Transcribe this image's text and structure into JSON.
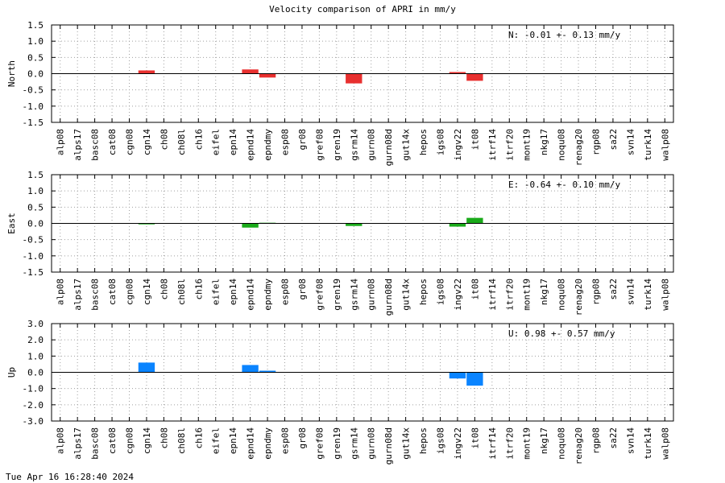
{
  "chart_data": {
    "title": "Velocity comparison of APRI in mm/y",
    "timestamp": "Tue Apr 16 16:28:40 2024",
    "categories": [
      "alp08",
      "alps17",
      "basc08",
      "cat08",
      "cgn08",
      "cgn14",
      "ch08",
      "ch08l",
      "ch16",
      "eifel",
      "epn14",
      "epnd14",
      "epndmy",
      "esp08",
      "gr08",
      "gref08",
      "gren19",
      "gsrm14",
      "gurn08",
      "gurn08d",
      "gut14x",
      "hepos",
      "igs08",
      "ingv22",
      "it08",
      "itrf14",
      "itrf20",
      "mont19",
      "nkg17",
      "noqu08",
      "renag20",
      "rgp08",
      "sa22",
      "svn14",
      "turk14",
      "walp08"
    ],
    "panels": [
      {
        "type": "bar",
        "ylabel": "North",
        "color": "#e8302f",
        "ylim": [
          -1.5,
          1.5
        ],
        "yticks": [
          1.5,
          1.0,
          0.5,
          0.0,
          -0.5,
          -1.0,
          -1.5
        ],
        "yticklabels": [
          "1.5",
          "1.0",
          "0.5",
          "0.0",
          "-0.5",
          "-1.0",
          "-1.5"
        ],
        "stats": "N:  -0.01 +-  0.13 mm/y",
        "values": [
          0,
          0,
          0,
          0,
          0,
          0.1,
          0,
          0,
          0,
          0,
          0,
          0.13,
          -0.12,
          0,
          0,
          0,
          0,
          -0.3,
          0,
          0,
          0,
          0,
          0,
          0.05,
          -0.22,
          0,
          0,
          0,
          0,
          0,
          0,
          0,
          0,
          0,
          0,
          0
        ]
      },
      {
        "type": "bar",
        "ylabel": "East",
        "color": "#1aaa1a",
        "ylim": [
          -1.5,
          1.5
        ],
        "yticks": [
          1.5,
          1.0,
          0.5,
          0.0,
          -0.5,
          -1.0,
          -1.5
        ],
        "yticklabels": [
          "1.5",
          "1.0",
          "0.5",
          "0.0",
          "-0.5",
          "-1.0",
          "-1.5"
        ],
        "stats": "E:  -0.64 +-  0.10 mm/y",
        "values": [
          0,
          0,
          0,
          0,
          0,
          -0.03,
          0,
          0,
          0,
          0,
          0,
          -0.13,
          0.02,
          0,
          0,
          0,
          0,
          -0.08,
          0,
          0,
          0,
          0,
          0,
          -0.1,
          0.17,
          0,
          0,
          0,
          0,
          0,
          0,
          0,
          0,
          0,
          0,
          0
        ]
      },
      {
        "type": "bar",
        "ylabel": "Up",
        "color": "#0a84ff",
        "ylim": [
          -3.0,
          3.0
        ],
        "yticks": [
          3.0,
          2.0,
          1.0,
          0.0,
          -1.0,
          -2.0,
          -3.0
        ],
        "yticklabels": [
          "3.0",
          "2.0",
          "1.0",
          "0.0",
          "-1.0",
          "-2.0",
          "-3.0"
        ],
        "stats": "U:   0.98 +-  0.57 mm/y",
        "values": [
          0,
          0,
          0,
          0,
          0,
          0.6,
          0,
          0,
          0,
          0,
          0,
          0.45,
          0.1,
          0,
          0,
          0,
          0,
          0,
          0,
          0,
          0,
          0,
          0,
          -0.38,
          -0.82,
          0,
          0,
          0,
          0,
          0,
          0,
          0,
          0,
          0,
          0,
          0
        ]
      }
    ]
  }
}
